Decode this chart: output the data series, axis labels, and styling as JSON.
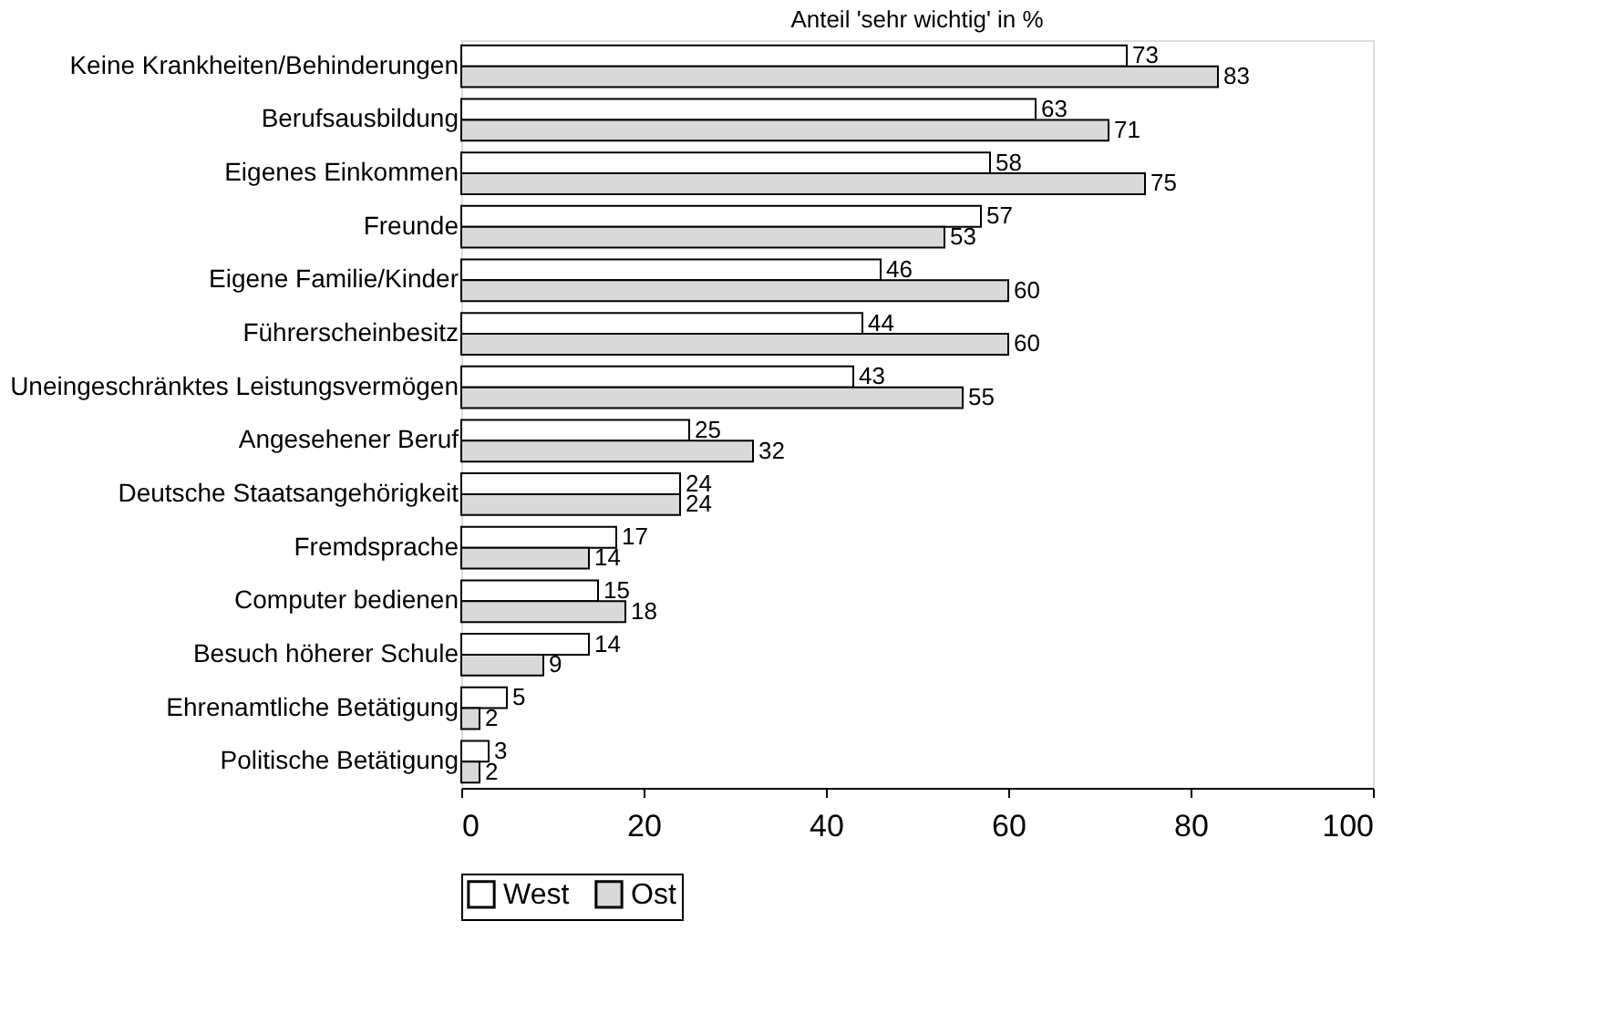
{
  "chart_data": {
    "type": "bar",
    "orientation": "horizontal",
    "title": "Anteil 'sehr wichtig' in %",
    "categories": [
      "Keine Krankheiten/Behinderungen",
      "Berufsausbildung",
      "Eigenes Einkommen",
      "Freunde",
      "Eigene Familie/Kinder",
      "Führerscheinbesitz",
      "Uneingeschränktes Leistungsvermögen",
      "Angesehener Beruf",
      "Deutsche Staatsangehörigkeit",
      "Fremdsprache",
      "Computer bedienen",
      "Besuch höherer Schule",
      "Ehrenamtliche Betätigung",
      "Politische Betätigung"
    ],
    "series": [
      {
        "name": "West",
        "color": "#ffffff",
        "values": [
          73,
          63,
          58,
          57,
          46,
          44,
          43,
          25,
          24,
          17,
          15,
          14,
          5,
          3
        ]
      },
      {
        "name": "Ost",
        "color": "#d9d9d9",
        "values": [
          83,
          71,
          75,
          53,
          60,
          60,
          55,
          32,
          24,
          14,
          18,
          9,
          2,
          2
        ]
      }
    ],
    "xlim": [
      0,
      100
    ],
    "xticks": [
      0,
      20,
      40,
      60,
      80,
      100
    ],
    "grid": false,
    "legend": "bottom",
    "data_labels": true
  }
}
